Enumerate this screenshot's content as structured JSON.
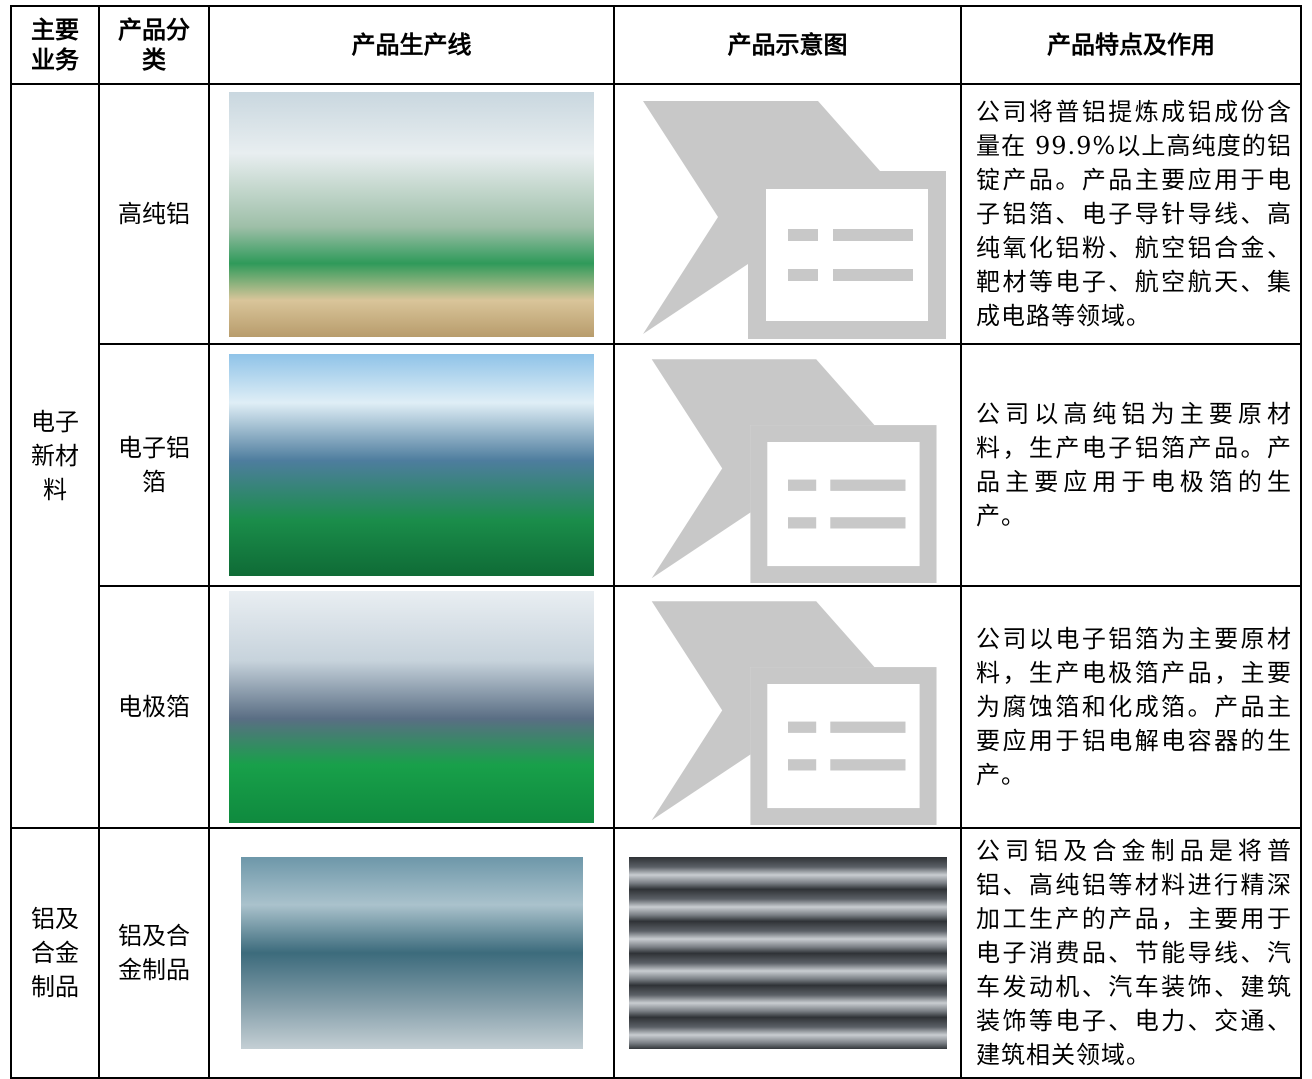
{
  "table": {
    "header": [
      "主要业务",
      "产品分类",
      "产品生产线",
      "产品示意图",
      "产品特点及作用"
    ],
    "rows": [
      {
        "business": "电子新材料",
        "category": "高纯铝",
        "features": "公司将普铝提炼成铝成份含量在 99.9%以上高纯度的铝锭产品。产品主要应用于电子铝箔、电子导针导线、高纯氧化铝粉、航空铝合金、靶材等电子、航空航天、集成电路等领域。"
      },
      {
        "category": "电子铝箔",
        "features": "公司以高纯铝为主要原材料，生产电子铝箔产品。产品主要应用于电极箔的生产。"
      },
      {
        "category": "电极箔",
        "features": "公司以电子铝箔为主要原材料，生产电极箔产品，主要为腐蚀箔和化成箔。产品主要应用于铝电解电容器的生产。"
      },
      {
        "business": "铝及合金制品",
        "category": "铝及合金制品",
        "features": "公司铝及合金制品是将普铝、高纯铝等材料进行精深加工生产的产品，主要用于电子消费品、节能导线、汽车发动机、汽车装饰、建筑装饰等电子、电力、交通、建筑相关领域。"
      }
    ]
  }
}
